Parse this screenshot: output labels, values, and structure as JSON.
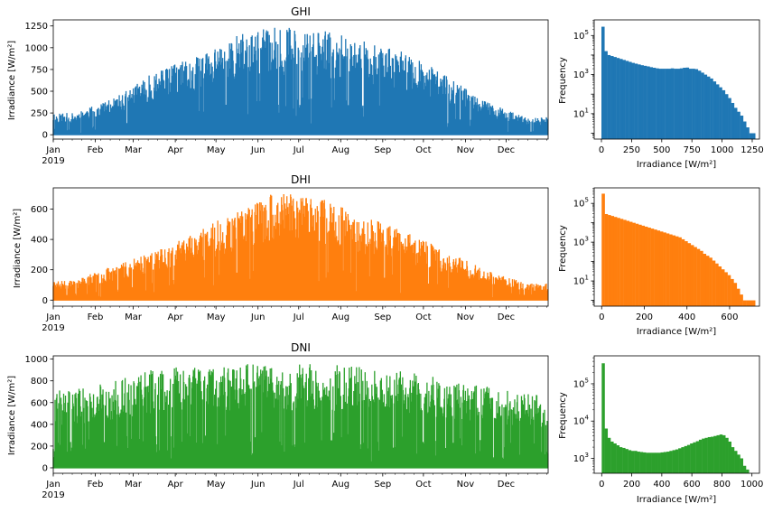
{
  "colors": {
    "ghi": "#1f77b4",
    "dhi": "#ff7f0e",
    "dni": "#2ca02c"
  },
  "chart_data": [
    {
      "id": "ghi-ts",
      "type": "line",
      "title": "GHI",
      "xlabel": "",
      "ylabel": "Irradiance [W/m²]",
      "x_ticks": [
        "Jan",
        "Feb",
        "Mar",
        "Apr",
        "May",
        "Jun",
        "Jul",
        "Aug",
        "Sep",
        "Oct",
        "Nov",
        "Dec"
      ],
      "x_year_label": "2019",
      "x_range": [
        "2019-01-01",
        "2019-12-31"
      ],
      "y_ticks": [
        0,
        250,
        500,
        750,
        1000,
        1250
      ],
      "ylim": [
        -50,
        1320
      ],
      "envelope_month_peaks": [
        {
          "month": "Jan",
          "peak": 250
        },
        {
          "month": "Feb",
          "peak": 420
        },
        {
          "month": "Mar",
          "peak": 720
        },
        {
          "month": "Apr",
          "peak": 900
        },
        {
          "month": "May",
          "peak": 1150
        },
        {
          "month": "Jun",
          "peak": 1250
        },
        {
          "month": "Jul",
          "peak": 1210
        },
        {
          "month": "Aug",
          "peak": 1080
        },
        {
          "month": "Sep",
          "peak": 950
        },
        {
          "month": "Oct",
          "peak": 700
        },
        {
          "month": "Nov",
          "peak": 380
        },
        {
          "month": "Dec",
          "peak": 200
        }
      ]
    },
    {
      "id": "ghi-hist",
      "type": "bar",
      "title": "",
      "xlabel": "Irradiance [W/m²]",
      "ylabel": "Frequency",
      "y_scale": "log",
      "x_ticks": [
        0,
        250,
        500,
        750,
        1000,
        1250
      ],
      "xlim": [
        -60,
        1310
      ],
      "y_tick_exponents": [
        1,
        3,
        5
      ],
      "ylim_log10": [
        -0.3,
        5.8
      ],
      "bins": {
        "start": 0,
        "width": 25,
        "count": 51
      },
      "log10_counts": [
        5.45,
        4.2,
        4.0,
        3.95,
        3.9,
        3.85,
        3.8,
        3.75,
        3.7,
        3.65,
        3.6,
        3.56,
        3.52,
        3.48,
        3.45,
        3.42,
        3.38,
        3.35,
        3.32,
        3.3,
        3.3,
        3.3,
        3.3,
        3.32,
        3.3,
        3.3,
        3.32,
        3.35,
        3.36,
        3.3,
        3.3,
        3.28,
        3.2,
        3.1,
        3.0,
        2.9,
        2.8,
        2.65,
        2.5,
        2.35,
        2.2,
        2.0,
        1.8,
        1.55,
        1.3,
        1.1,
        0.9,
        0.6,
        0.3,
        0.0,
        0.0
      ]
    },
    {
      "id": "dhi-ts",
      "type": "line",
      "title": "DHI",
      "xlabel": "",
      "ylabel": "Irradiance [W/m²]",
      "x_ticks": [
        "Jan",
        "Feb",
        "Mar",
        "Apr",
        "May",
        "Jun",
        "Jul",
        "Aug",
        "Sep",
        "Oct",
        "Nov",
        "Dec"
      ],
      "x_year_label": "2019",
      "x_range": [
        "2019-01-01",
        "2019-12-31"
      ],
      "y_ticks": [
        0,
        200,
        400,
        600
      ],
      "ylim": [
        -40,
        740
      ],
      "envelope_month_peaks": [
        {
          "month": "Jan",
          "peak": 130
        },
        {
          "month": "Feb",
          "peak": 230
        },
        {
          "month": "Mar",
          "peak": 330
        },
        {
          "month": "Apr",
          "peak": 440
        },
        {
          "month": "May",
          "peak": 600
        },
        {
          "month": "Jun",
          "peak": 720
        },
        {
          "month": "Jul",
          "peak": 680
        },
        {
          "month": "Aug",
          "peak": 560
        },
        {
          "month": "Sep",
          "peak": 460
        },
        {
          "month": "Oct",
          "peak": 330
        },
        {
          "month": "Nov",
          "peak": 200
        },
        {
          "month": "Dec",
          "peak": 110
        }
      ]
    },
    {
      "id": "dhi-hist",
      "type": "bar",
      "title": "",
      "xlabel": "Irradiance [W/m²]",
      "ylabel": "Frequency",
      "y_scale": "log",
      "x_ticks": [
        0,
        200,
        400,
        600
      ],
      "xlim": [
        -35,
        740
      ],
      "y_tick_exponents": [
        1,
        3,
        5
      ],
      "ylim_log10": [
        -0.3,
        5.8
      ],
      "bins": {
        "start": 0,
        "width": 14.4,
        "count": 50
      },
      "log10_counts": [
        5.5,
        4.45,
        4.4,
        4.35,
        4.3,
        4.25,
        4.2,
        4.15,
        4.1,
        4.05,
        4.0,
        3.95,
        3.9,
        3.85,
        3.8,
        3.75,
        3.7,
        3.65,
        3.6,
        3.55,
        3.5,
        3.45,
        3.4,
        3.35,
        3.3,
        3.25,
        3.15,
        3.05,
        2.95,
        2.85,
        2.75,
        2.65,
        2.55,
        2.4,
        2.3,
        2.2,
        2.05,
        1.9,
        1.75,
        1.6,
        1.45,
        1.3,
        1.1,
        0.9,
        0.6,
        0.3,
        0.0,
        0.0,
        0.0,
        0.0
      ]
    },
    {
      "id": "dni-ts",
      "type": "line",
      "title": "DNI",
      "xlabel": "",
      "ylabel": "Irradiance [W/m²]",
      "x_ticks": [
        "Jan",
        "Feb",
        "Mar",
        "Apr",
        "May",
        "Jun",
        "Jul",
        "Aug",
        "Sep",
        "Oct",
        "Nov",
        "Dec"
      ],
      "x_year_label": "2019",
      "x_range": [
        "2019-01-01",
        "2019-12-31"
      ],
      "y_ticks": [
        0,
        200,
        400,
        600,
        800,
        1000
      ],
      "ylim": [
        -50,
        1030
      ],
      "envelope_month_peaks": [
        {
          "month": "Jan",
          "peak": 720
        },
        {
          "month": "Feb",
          "peak": 800
        },
        {
          "month": "Mar",
          "peak": 920
        },
        {
          "month": "Apr",
          "peak": 940
        },
        {
          "month": "May",
          "peak": 960
        },
        {
          "month": "Jun",
          "peak": 950
        },
        {
          "month": "Jul",
          "peak": 960
        },
        {
          "month": "Aug",
          "peak": 940
        },
        {
          "month": "Sep",
          "peak": 900
        },
        {
          "month": "Oct",
          "peak": 820
        },
        {
          "month": "Nov",
          "peak": 760
        },
        {
          "month": "Dec",
          "peak": 680
        }
      ]
    },
    {
      "id": "dni-hist",
      "type": "bar",
      "title": "",
      "xlabel": "Irradiance [W/m²]",
      "ylabel": "Frequency",
      "y_scale": "log",
      "x_ticks": [
        0,
        200,
        400,
        600,
        800,
        1000
      ],
      "xlim": [
        -50,
        1050
      ],
      "y_tick_exponents": [
        3,
        4,
        5
      ],
      "ylim_log10": [
        2.6,
        5.75
      ],
      "bins": {
        "start": 0,
        "width": 19.6,
        "count": 50
      },
      "log10_counts": [
        5.55,
        3.8,
        3.55,
        3.45,
        3.4,
        3.35,
        3.3,
        3.28,
        3.25,
        3.22,
        3.2,
        3.2,
        3.18,
        3.17,
        3.16,
        3.15,
        3.15,
        3.15,
        3.15,
        3.15,
        3.16,
        3.17,
        3.18,
        3.2,
        3.22,
        3.24,
        3.27,
        3.3,
        3.33,
        3.36,
        3.4,
        3.43,
        3.46,
        3.5,
        3.53,
        3.55,
        3.57,
        3.58,
        3.6,
        3.62,
        3.64,
        3.62,
        3.55,
        3.45,
        3.3,
        3.2,
        3.1,
        3.0,
        2.8,
        2.7
      ]
    }
  ]
}
